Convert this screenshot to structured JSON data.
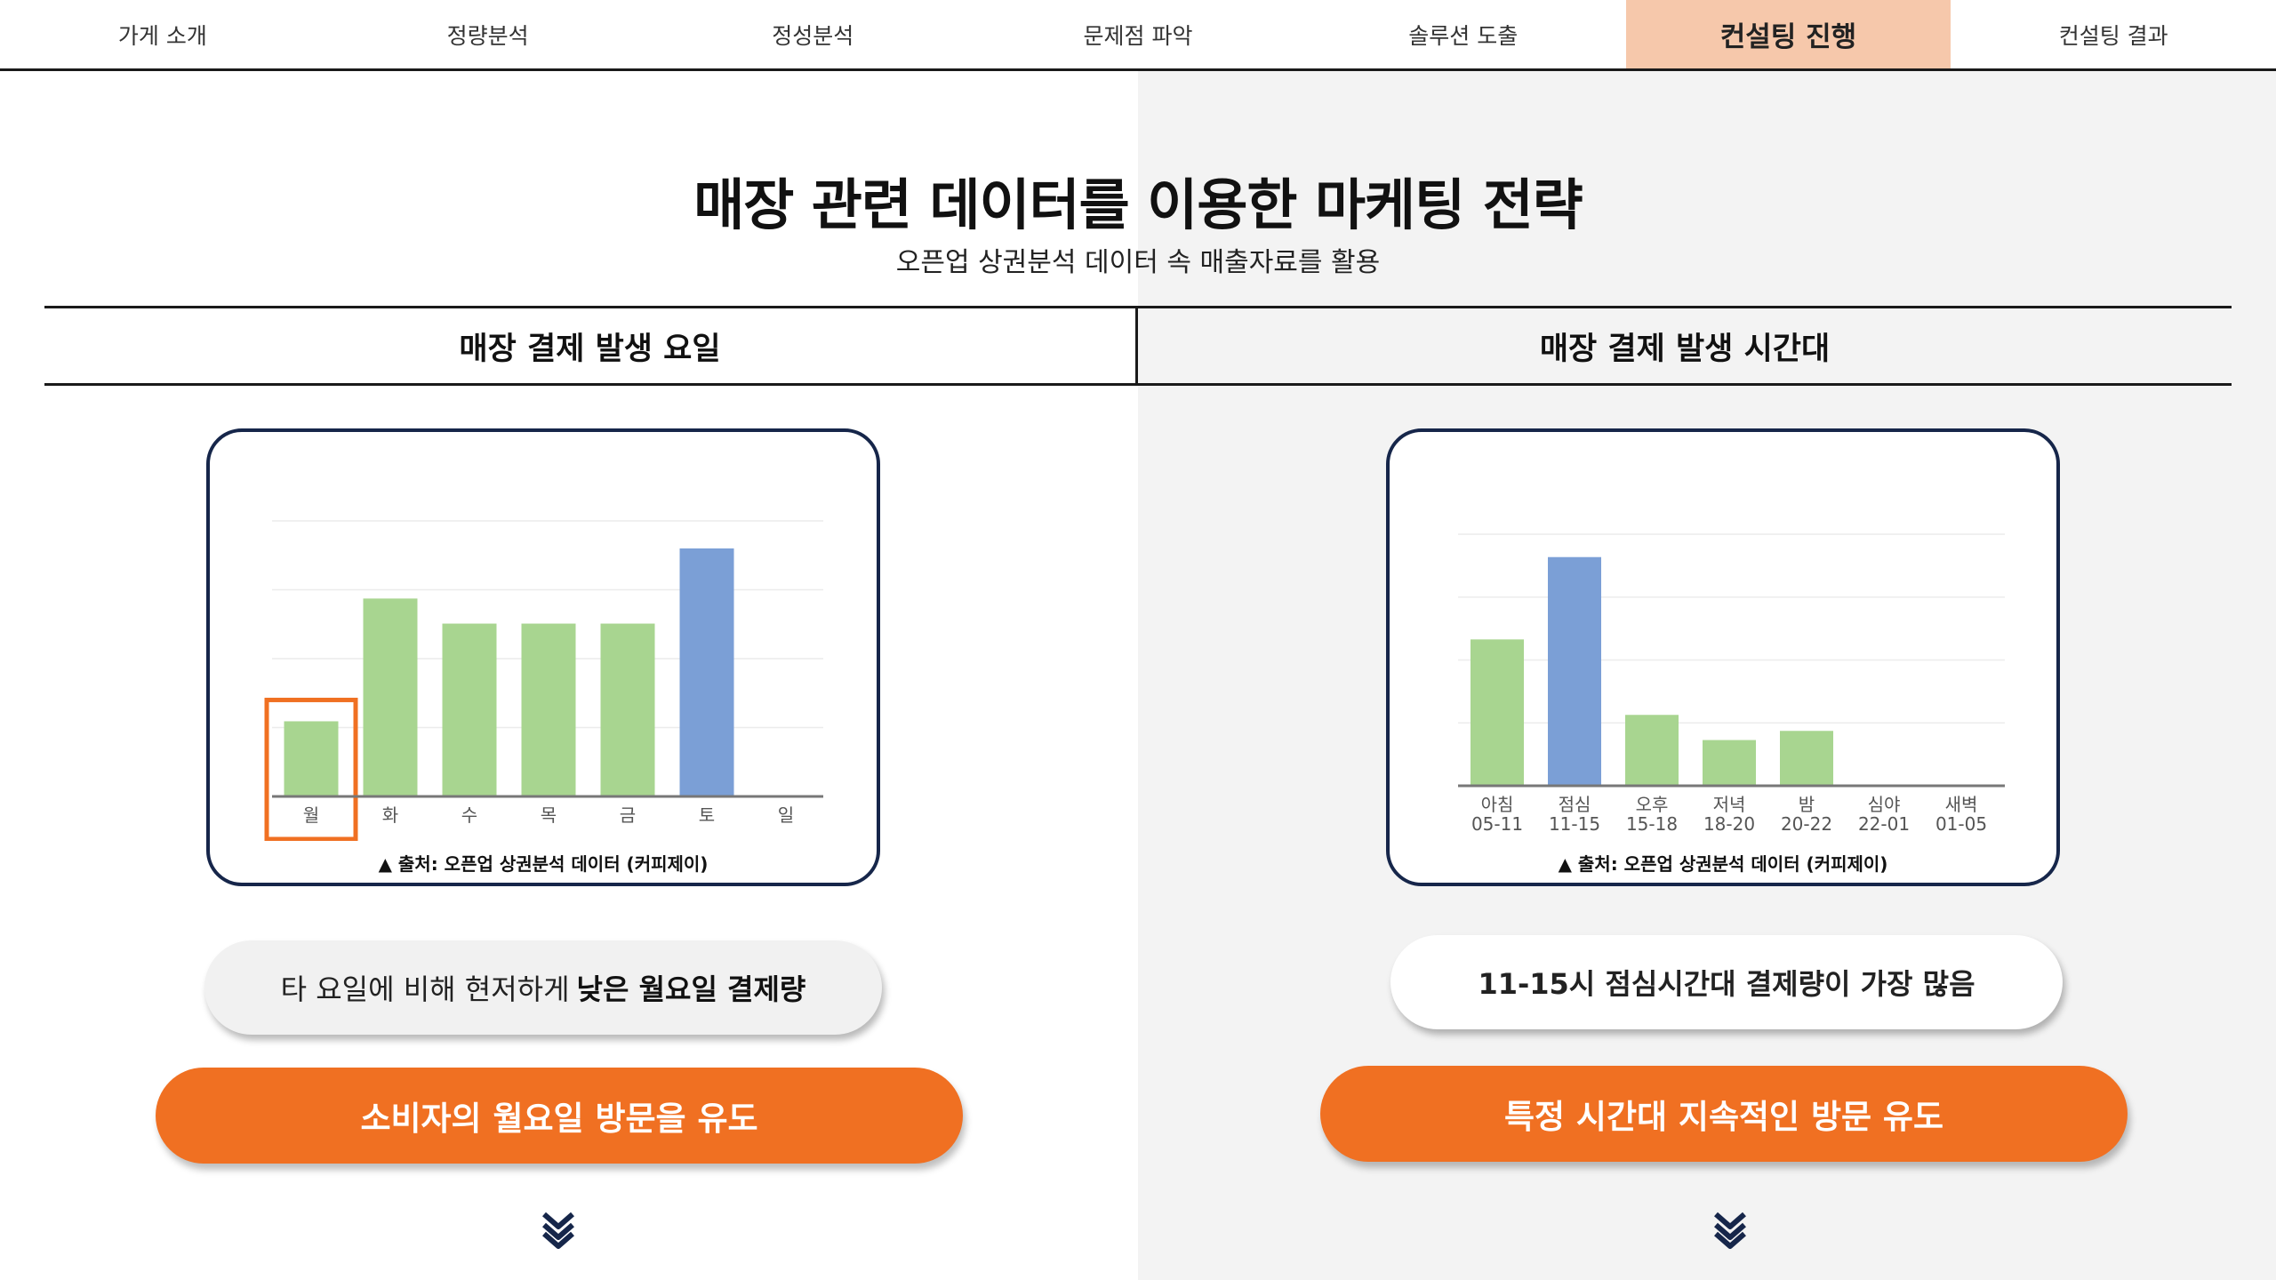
{
  "nav": {
    "items": [
      "가게 소개",
      "정량분석",
      "정성분석",
      "문제점 파악",
      "솔루션 도출",
      "컨설팅 진행",
      "컨설팅 결과"
    ],
    "active_index": 5
  },
  "header": {
    "title": "매장 관련 데이터를 이용한 마케팅 전략",
    "subtitle": "오픈업 상권분석 데이터 속 매출자료를 활용"
  },
  "left": {
    "heading": "매장 결제 발생 요일",
    "source": "▲ 출처: 오픈업 상권분석 데이터 (커피제이)",
    "note_plain": "타 요일에 비해 현저하게",
    "note_bold": "낮은 월요일 결제량",
    "cta": "소비자의 월요일 방문을 유도"
  },
  "right": {
    "heading": "매장 결제 발생 시간대",
    "source": "▲ 출처: 오픈업 상권분석 데이터 (커피제이)",
    "note": "11-15시 점심시간대 결제량이 가장 많음",
    "cta": "특정 시간대 지속적인 방문 유도"
  },
  "colors": {
    "bar": "#a8d590",
    "highlight_bar": "#7b9fd6",
    "accent": "#f07022",
    "active_tab": "#f6c8ab"
  },
  "chart_data": [
    {
      "type": "bar",
      "categories": [
        "월",
        "화",
        "수",
        "목",
        "금",
        "토",
        "일"
      ],
      "values": [
        30,
        79,
        69,
        69,
        69,
        99,
        0
      ],
      "highlight_category": "월",
      "highlight_color_category": "토",
      "ylim": [
        0,
        110
      ],
      "grid": true
    },
    {
      "type": "bar",
      "categories": [
        "아침\n05-11",
        "점심\n11-15",
        "오후\n15-18",
        "저녁\n18-20",
        "밤\n20-22",
        "심야\n22-01",
        "새벽\n01-05"
      ],
      "values": [
        64,
        100,
        31,
        20,
        24,
        0,
        0
      ],
      "highlight_color_category": "점심\n11-15",
      "ylim": [
        0,
        110
      ],
      "grid": true
    }
  ]
}
